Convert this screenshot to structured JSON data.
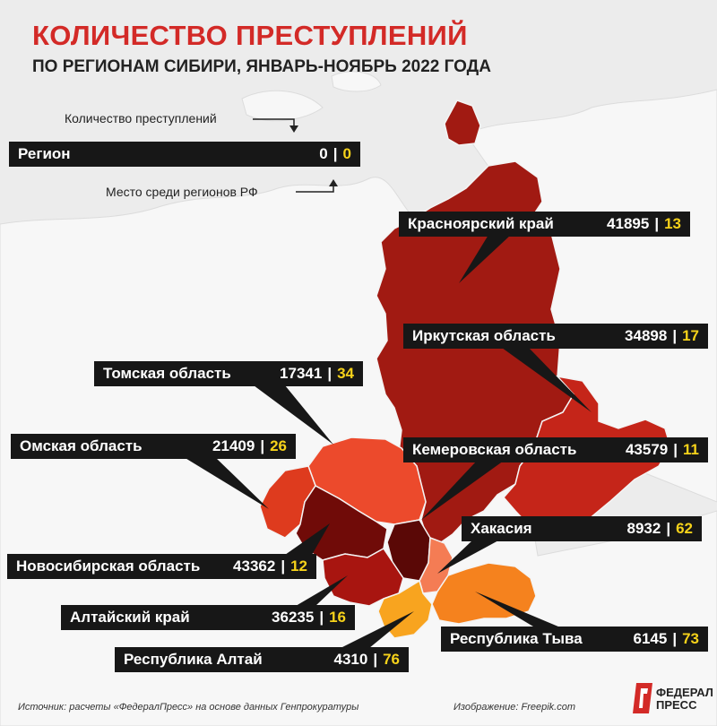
{
  "title": "КОЛИЧЕСТВО ПРЕСТУПЛЕНИЙ",
  "subtitle": "ПО РЕГИОНАМ СИБИРИ, ЯНВАРЬ-НОЯБРЬ 2022 ГОДА",
  "legend": {
    "crimes_note": "Количество преступлений",
    "rank_note": "Место среди регионов РФ",
    "sample": {
      "name": "Регион",
      "crimes": "0",
      "rank": "0"
    }
  },
  "separator": "|",
  "regions": [
    {
      "name": "Красноярский край",
      "crimes": "41895",
      "rank": "13",
      "color": "#a11a12"
    },
    {
      "name": "Иркутская область",
      "crimes": "34898",
      "rank": "17",
      "color": "#c52519"
    },
    {
      "name": "Томская область",
      "crimes": "17341",
      "rank": "34",
      "color": "#ec4a2c"
    },
    {
      "name": "Омская область",
      "crimes": "21409",
      "rank": "26",
      "color": "#de3b1e"
    },
    {
      "name": "Кемеровская область",
      "crimes": "43579",
      "rank": "11",
      "color": "#5a0806"
    },
    {
      "name": "Хакасия",
      "crimes": "8932",
      "rank": "62",
      "color": "#f47c54"
    },
    {
      "name": "Новосибирская область",
      "crimes": "43362",
      "rank": "12",
      "color": "#700b08"
    },
    {
      "name": "Алтайский край",
      "crimes": "36235",
      "rank": "16",
      "color": "#a81510"
    },
    {
      "name": "Республика Тыва",
      "crimes": "6145",
      "rank": "73",
      "color": "#f5821e"
    },
    {
      "name": "Республика Алтай",
      "crimes": "4310",
      "rank": "76",
      "color": "#f8a41f"
    }
  ],
  "footer": {
    "source": "Источник: расчеты «ФедералПресс» на основе данных Генпрокуратуры",
    "image_credit": "Изображение: Freepik.com",
    "logo_line1": "ФЕДЕРАЛ",
    "logo_line2": "ПРЕСС"
  },
  "colors": {
    "accent": "#d32a27",
    "rank_yellow": "#f6d21a",
    "label_bg": "#171717",
    "land": "#f7f7f7",
    "background": "#ededed"
  }
}
